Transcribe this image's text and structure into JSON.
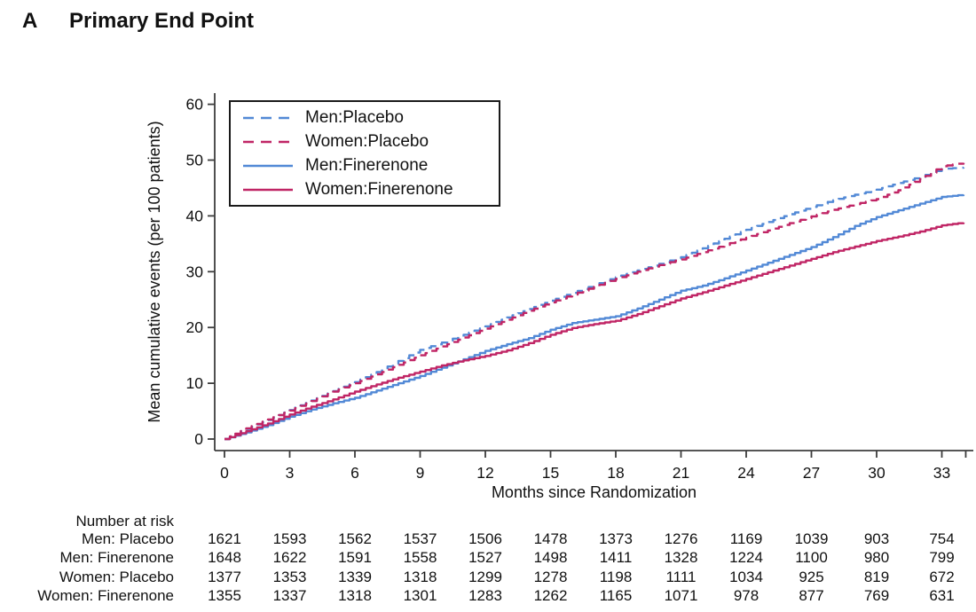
{
  "title": {
    "panel": "A",
    "text": "Primary End Point"
  },
  "colors": {
    "men": "#5289d6",
    "women": "#c02565",
    "axis": "#3d3d3d",
    "text": "#111111",
    "legend_border": "#1a1a1a"
  },
  "chart_data": {
    "type": "line",
    "title": "",
    "xlabel": "Months since Randomization",
    "ylabel": "Mean cumulative events (per 100 patients)",
    "xlim": [
      0,
      34.4
    ],
    "ylim": [
      0,
      62
    ],
    "xticks": [
      0,
      3,
      6,
      9,
      12,
      15,
      18,
      21,
      24,
      27,
      30,
      33
    ],
    "extra_xtick": 34.1,
    "yticks": [
      0,
      10,
      20,
      30,
      40,
      50,
      60
    ],
    "grid": false,
    "legend_position": "top-left",
    "x_months": [
      0,
      1,
      2,
      3,
      4,
      5,
      6,
      7,
      8,
      9,
      10,
      11,
      12,
      13,
      14,
      15,
      16,
      17,
      18,
      19,
      20,
      21,
      22,
      23,
      24,
      25,
      26,
      27,
      28,
      29,
      30,
      31,
      32,
      33,
      34
    ],
    "series": [
      {
        "name": "Men:Placebo",
        "color": "#5289d6",
        "dash": true,
        "values": [
          0,
          1.8,
          3.4,
          5.2,
          6.9,
          8.6,
          10.2,
          12.0,
          14.0,
          16.0,
          17.3,
          18.7,
          20.2,
          21.8,
          23.3,
          24.8,
          26.2,
          27.6,
          29.0,
          30.2,
          31.4,
          32.6,
          34.2,
          35.9,
          37.5,
          38.9,
          40.3,
          41.6,
          42.8,
          43.8,
          44.7,
          45.9,
          47.0,
          48.4,
          48.7
        ]
      },
      {
        "name": "Women:Placebo",
        "color": "#c02565",
        "dash": true,
        "values": [
          0,
          1.9,
          3.5,
          5.1,
          6.8,
          8.5,
          10.0,
          11.6,
          13.3,
          15.0,
          16.6,
          18.2,
          19.8,
          21.4,
          23.0,
          24.5,
          25.9,
          27.3,
          28.7,
          30.0,
          31.2,
          32.2,
          33.5,
          34.8,
          36.1,
          37.4,
          38.7,
          39.9,
          41.1,
          42.1,
          43.0,
          44.6,
          46.6,
          48.9,
          49.5
        ]
      },
      {
        "name": "Men:Finerenone",
        "color": "#5289d6",
        "dash": false,
        "values": [
          0,
          1.2,
          2.5,
          4.0,
          5.3,
          6.4,
          7.4,
          8.7,
          10.0,
          11.3,
          12.8,
          14.3,
          15.8,
          17.0,
          18.1,
          19.6,
          20.8,
          21.4,
          22.0,
          23.4,
          25.0,
          26.6,
          27.5,
          28.8,
          30.2,
          31.6,
          33.0,
          34.4,
          36.2,
          38.2,
          39.8,
          41.0,
          42.2,
          43.4,
          43.8
        ]
      },
      {
        "name": "Women:Finerenone",
        "color": "#c02565",
        "dash": false,
        "values": [
          0,
          1.4,
          2.8,
          4.4,
          5.8,
          7.1,
          8.5,
          9.8,
          11.0,
          12.1,
          13.2,
          14.1,
          14.9,
          15.9,
          17.2,
          18.7,
          19.9,
          20.6,
          21.2,
          22.4,
          23.8,
          25.2,
          26.3,
          27.5,
          28.7,
          29.9,
          31.1,
          32.3,
          33.5,
          34.5,
          35.5,
          36.3,
          37.2,
          38.3,
          38.8
        ]
      }
    ]
  },
  "risk_table": {
    "header": "Number at risk",
    "time_points": [
      0,
      3,
      6,
      9,
      12,
      15,
      18,
      21,
      24,
      27,
      30,
      33
    ],
    "rows": [
      {
        "label": "Men: Placebo",
        "values": [
          1621,
          1593,
          1562,
          1537,
          1506,
          1478,
          1373,
          1276,
          1169,
          1039,
          903,
          754
        ]
      },
      {
        "label": "Men: Finerenone",
        "values": [
          1648,
          1622,
          1591,
          1558,
          1527,
          1498,
          1411,
          1328,
          1224,
          1100,
          980,
          799
        ]
      },
      {
        "label": "Women: Placebo",
        "values": [
          1377,
          1353,
          1339,
          1318,
          1299,
          1278,
          1198,
          1111,
          1034,
          925,
          819,
          672
        ]
      },
      {
        "label": "Women: Finerenone",
        "values": [
          1355,
          1337,
          1318,
          1301,
          1283,
          1262,
          1165,
          1071,
          978,
          877,
          769,
          631
        ]
      }
    ]
  }
}
